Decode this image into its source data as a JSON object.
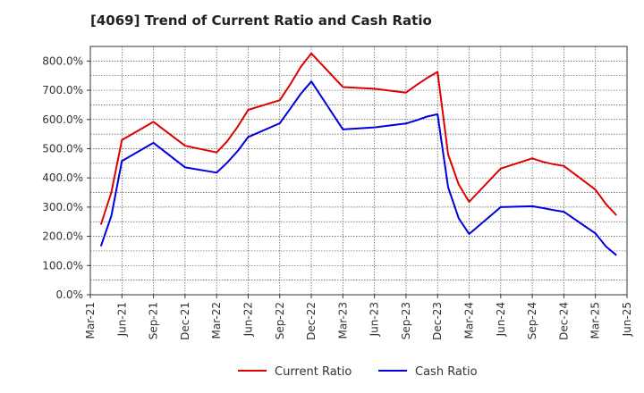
{
  "chart_data": {
    "type": "line",
    "title": "[4069]  Trend of Current Ratio and Cash Ratio",
    "xlabel": "",
    "ylabel": "",
    "ylim": [
      0,
      850
    ],
    "y_ticks": [
      0,
      100,
      200,
      300,
      400,
      500,
      600,
      700,
      800
    ],
    "y_tick_labels": [
      "0.0%",
      "100.0%",
      "200.0%",
      "300.0%",
      "400.0%",
      "500.0%",
      "600.0%",
      "700.0%",
      "800.0%"
    ],
    "x_tick_labels": [
      "Mar-21",
      "Jun-21",
      "Sep-21",
      "Dec-21",
      "Mar-22",
      "Jun-22",
      "Sep-22",
      "Dec-22",
      "Mar-23",
      "Jun-23",
      "Sep-23",
      "Dec-23",
      "Mar-24",
      "Jun-24",
      "Sep-24",
      "Dec-24",
      "Mar-25",
      "Jun-25"
    ],
    "x_range_months": [
      0,
      51
    ],
    "grid": true,
    "legend_position": "bottom",
    "series": [
      {
        "name": "Current Ratio",
        "color": "#dd0000",
        "x_months": [
          1,
          2,
          3,
          6,
          9,
          12,
          13,
          14,
          15,
          18,
          19,
          20,
          21,
          24,
          27,
          30,
          31,
          32,
          33,
          34,
          35,
          36,
          39,
          42,
          43,
          44,
          45,
          48,
          49,
          50
        ],
        "values": [
          240,
          350,
          530,
          592,
          510,
          487,
          525,
          575,
          633,
          666,
          720,
          780,
          826,
          711,
          705,
          692,
          718,
          742,
          763,
          480,
          378,
          318,
          432,
          467,
          455,
          447,
          441,
          360,
          310,
          272
        ]
      },
      {
        "name": "Cash Ratio",
        "color": "#0000dd",
        "x_months": [
          1,
          2,
          3,
          6,
          9,
          12,
          13,
          14,
          15,
          18,
          19,
          20,
          21,
          24,
          27,
          30,
          31,
          32,
          33,
          34,
          35,
          36,
          39,
          42,
          43,
          44,
          45,
          48,
          49,
          50
        ],
        "values": [
          166,
          270,
          458,
          520,
          436,
          418,
          452,
          492,
          540,
          587,
          637,
          688,
          730,
          566,
          573,
          586,
          597,
          610,
          618,
          368,
          262,
          208,
          300,
          303,
          297,
          290,
          284,
          210,
          165,
          135
        ]
      }
    ]
  }
}
